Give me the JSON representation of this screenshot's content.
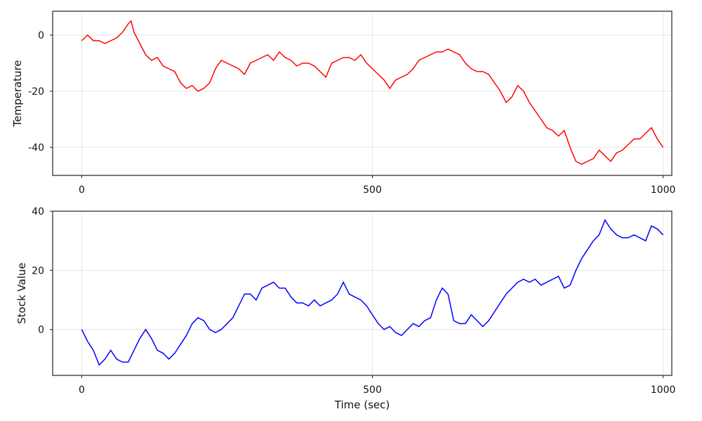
{
  "chart_data": [
    {
      "type": "line",
      "ylabel": "Temperature",
      "xlabel": "",
      "xlim": [
        -50,
        1015
      ],
      "ylim": [
        -50,
        8.5
      ],
      "xticks": [
        0,
        500,
        1000
      ],
      "yticks": [
        0,
        -20,
        -40
      ],
      "xtick_labels": [
        "0",
        "500",
        "1000"
      ],
      "ytick_labels": [
        "0",
        "-20",
        "-40"
      ],
      "grid": true,
      "series": [
        {
          "color": "#ff0000",
          "x": [
            0,
            10,
            20,
            30,
            40,
            50,
            60,
            70,
            80,
            85,
            90,
            100,
            110,
            120,
            130,
            140,
            150,
            160,
            170,
            180,
            190,
            200,
            210,
            220,
            230,
            240,
            250,
            260,
            270,
            280,
            290,
            300,
            310,
            320,
            330,
            340,
            350,
            360,
            370,
            380,
            390,
            400,
            410,
            420,
            430,
            440,
            450,
            460,
            470,
            480,
            490,
            500,
            510,
            520,
            530,
            540,
            550,
            560,
            570,
            580,
            590,
            600,
            610,
            620,
            630,
            640,
            650,
            660,
            670,
            680,
            690,
            700,
            710,
            720,
            730,
            740,
            750,
            760,
            770,
            780,
            790,
            800,
            810,
            820,
            830,
            840,
            850,
            860,
            870,
            880,
            890,
            900,
            910,
            920,
            930,
            940,
            950,
            960,
            970,
            980,
            990,
            1000
          ],
          "y": [
            -2,
            0,
            -2,
            -2,
            -3,
            -2,
            -1,
            1,
            4,
            5,
            1,
            -3,
            -7,
            -9,
            -8,
            -11,
            -12,
            -13,
            -17,
            -19,
            -18,
            -20,
            -19,
            -17,
            -12,
            -9,
            -10,
            -11,
            -12,
            -14,
            -10,
            -9,
            -8,
            -7,
            -9,
            -6,
            -8,
            -9,
            -11,
            -10,
            -10,
            -11,
            -13,
            -15,
            -10,
            -9,
            -8,
            -8,
            -9,
            -7,
            -10,
            -12,
            -14,
            -16,
            -19,
            -16,
            -15,
            -14,
            -12,
            -9,
            -8,
            -7,
            -6,
            -6,
            -5,
            -6,
            -7,
            -10,
            -12,
            -13,
            -13,
            -14,
            -17,
            -20,
            -24,
            -22,
            -18,
            -20,
            -24,
            -27,
            -30,
            -33,
            -34,
            -36,
            -34,
            -40,
            -45,
            -46,
            -45,
            -44,
            -41,
            -43,
            -45,
            -42,
            -41,
            -39,
            -37,
            -37,
            -35,
            -33,
            -37,
            -40
          ]
        }
      ]
    },
    {
      "type": "line",
      "ylabel": "Stock Value",
      "xlabel": "Time (sec)",
      "xlim": [
        -50,
        1015
      ],
      "ylim": [
        -15.5,
        40
      ],
      "xticks": [
        0,
        500,
        1000
      ],
      "yticks": [
        40,
        20,
        0
      ],
      "xtick_labels": [
        "0",
        "500",
        "1000"
      ],
      "ytick_labels": [
        "40",
        "20",
        "0"
      ],
      "grid": true,
      "series": [
        {
          "color": "#0000ff",
          "x": [
            0,
            10,
            20,
            30,
            40,
            50,
            60,
            70,
            80,
            90,
            100,
            110,
            120,
            130,
            140,
            150,
            160,
            170,
            180,
            190,
            200,
            210,
            220,
            230,
            240,
            250,
            260,
            270,
            280,
            290,
            300,
            310,
            320,
            330,
            340,
            350,
            360,
            370,
            380,
            390,
            400,
            410,
            420,
            430,
            440,
            450,
            460,
            470,
            480,
            490,
            500,
            510,
            520,
            530,
            540,
            550,
            560,
            570,
            580,
            590,
            600,
            610,
            620,
            630,
            640,
            650,
            660,
            670,
            680,
            690,
            700,
            710,
            720,
            730,
            740,
            750,
            760,
            770,
            780,
            790,
            800,
            810,
            820,
            830,
            840,
            850,
            860,
            870,
            880,
            890,
            900,
            910,
            920,
            930,
            940,
            950,
            960,
            970,
            980,
            990,
            1000
          ],
          "y": [
            0,
            -4,
            -7,
            -12,
            -10,
            -7,
            -10,
            -11,
            -11,
            -7,
            -3,
            0,
            -3,
            -7,
            -8,
            -10,
            -8,
            -5,
            -2,
            2,
            4,
            3,
            0,
            -1,
            0,
            2,
            4,
            8,
            12,
            12,
            10,
            14,
            15,
            16,
            14,
            14,
            11,
            9,
            9,
            8,
            10,
            8,
            9,
            10,
            12,
            16,
            12,
            11,
            10,
            8,
            5,
            2,
            0,
            1,
            -1,
            -2,
            0,
            2,
            1,
            3,
            4,
            10,
            14,
            12,
            3,
            2,
            2,
            5,
            3,
            1,
            3,
            6,
            9,
            12,
            14,
            16,
            17,
            16,
            17,
            15,
            16,
            17,
            18,
            14,
            15,
            20,
            24,
            27,
            30,
            32,
            37,
            34,
            32,
            31,
            31,
            32,
            31,
            30,
            35,
            34,
            32
          ]
        }
      ]
    }
  ]
}
